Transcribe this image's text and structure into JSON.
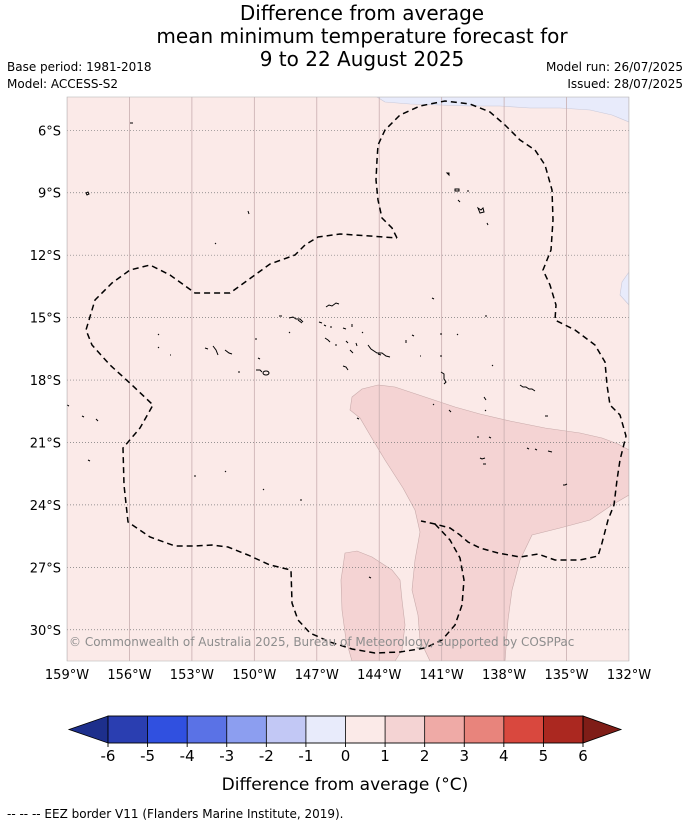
{
  "title_lines": [
    "Difference from average",
    "mean minimum temperature forecast for",
    "9 to 22 August 2025"
  ],
  "meta": {
    "base_period": "Base period: 1981-2018",
    "model": "Model: ACCESS-S2",
    "model_run": "Model run: 26/07/2025",
    "issued": "Issued: 28/07/2025"
  },
  "map": {
    "lon_range": [
      -159,
      -132
    ],
    "lat_range": [
      -31.5,
      -4.4
    ],
    "lat_ticks": [
      {
        "value": -6,
        "label": "6°S"
      },
      {
        "value": -9,
        "label": "9°S"
      },
      {
        "value": -12,
        "label": "12°S"
      },
      {
        "value": -15,
        "label": "15°S"
      },
      {
        "value": -18,
        "label": "18°S"
      },
      {
        "value": -21,
        "label": "21°S"
      },
      {
        "value": -24,
        "label": "24°S"
      },
      {
        "value": -27,
        "label": "27°S"
      },
      {
        "value": -30,
        "label": "30°S"
      }
    ],
    "lon_ticks": [
      {
        "value": -159,
        "label": "159°W"
      },
      {
        "value": -156,
        "label": "156°W"
      },
      {
        "value": -153,
        "label": "153°W"
      },
      {
        "value": -150,
        "label": "150°W"
      },
      {
        "value": -147,
        "label": "147°W"
      },
      {
        "value": -144,
        "label": "144°W"
      },
      {
        "value": -141,
        "label": "141°W"
      },
      {
        "value": -138,
        "label": "138°W"
      },
      {
        "value": -135,
        "label": "135°W"
      },
      {
        "value": -132,
        "label": "132°W"
      }
    ],
    "background_category": "0 to 1",
    "copyright": "© Commonwealth of Australia 2025, Bureau of Meteorology, supported by COSPPac"
  },
  "colorbar": {
    "label": "Difference from average (°C)",
    "ticks": [
      "-6",
      "-5",
      "-4",
      "-3",
      "-2",
      "-1",
      "0",
      "1",
      "2",
      "3",
      "4",
      "5",
      "6"
    ],
    "colors": [
      "#1d2f8c",
      "#2a3eb1",
      "#3050e0",
      "#5a72e6",
      "#8c9ef0",
      "#c2c8f5",
      "#e8ebfb",
      "#fbeae8",
      "#f4d3d3",
      "#efaaa6",
      "#e8847c",
      "#d9483e",
      "#ab2820",
      "#7f1d17"
    ]
  },
  "footer": "--  --  -- EEZ border V11 (Flanders Marine Institute, 2019)."
}
